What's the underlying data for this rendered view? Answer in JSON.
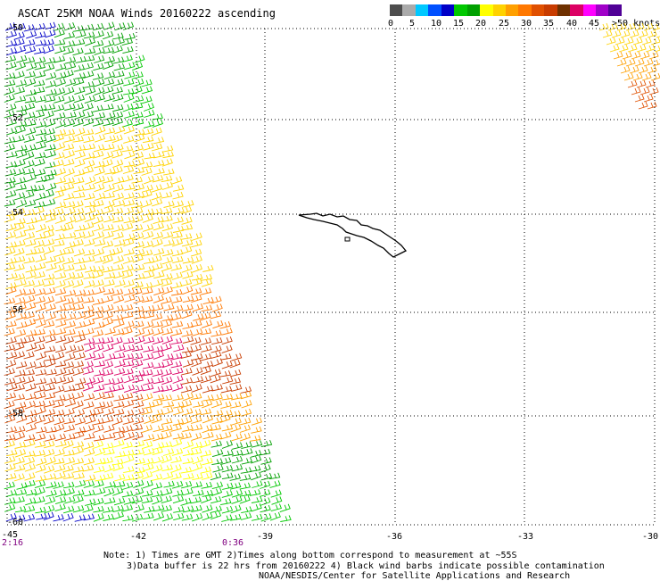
{
  "header": {
    "title": "ASCAT 25KM NOAA Winds 20160222 ascending"
  },
  "legend": {
    "colors": [
      "#4d4d4d",
      "#aaaaaa",
      "#00c8ff",
      "#0050ff",
      "#0000c8",
      "#00c800",
      "#00a000",
      "#ffff00",
      "#ffd200",
      "#ffa000",
      "#ff7800",
      "#e05000",
      "#c83c00",
      "#6e3000",
      "#dc0064",
      "#ff00ff",
      "#a000c8",
      "#500096"
    ],
    "labels": [
      "0",
      "5",
      "10",
      "15",
      "20",
      "25",
      "30",
      "35",
      "40",
      "45",
      ">50 knots"
    ]
  },
  "axes": {
    "lat_labels": [
      "-50",
      "-52",
      "-54",
      "-56",
      "-58",
      "-60"
    ],
    "lon_labels": [
      "-45",
      "-42",
      "-39",
      "-36",
      "-33",
      "-30"
    ]
  },
  "times": {
    "start": "2:16",
    "end": "0:36"
  },
  "notes": {
    "line1": "Note: 1) Times are GMT 2)Times along bottom correspond to measurement at ~55S",
    "line2": "3)Data buffer is 22 hrs from 20160222 4) Black wind barbs indicate possible contamination",
    "line3": "NOAA/NESDIS/Center for Satellite Applications and Research"
  }
}
